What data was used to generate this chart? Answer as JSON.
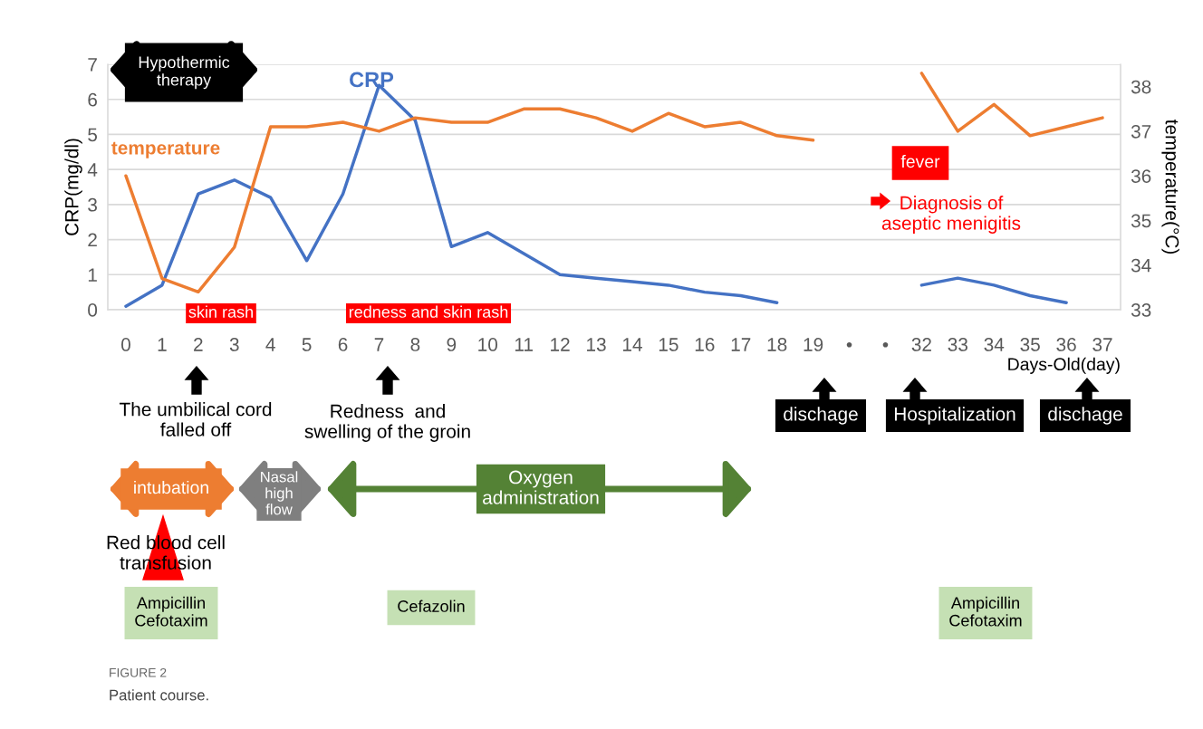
{
  "chart_data": {
    "type": "line",
    "xlabel": "Days-Old(day)",
    "ylabel": "CRP(mg/dl)",
    "y2label": "temperature(°C)",
    "categories": [
      "0",
      "1",
      "2",
      "3",
      "4",
      "5",
      "6",
      "7",
      "8",
      "9",
      "10",
      "11",
      "12",
      "13",
      "14",
      "15",
      "16",
      "17",
      "18",
      "19",
      "•",
      "•",
      "32",
      "33",
      "34",
      "35",
      "36",
      "37"
    ],
    "ylim": [
      0,
      7
    ],
    "yticks": [
      0,
      1,
      2,
      3,
      4,
      5,
      6,
      7
    ],
    "y2lim": [
      33,
      38.5
    ],
    "y2ticks": [
      33,
      34,
      35,
      36,
      37,
      38
    ],
    "grid": "y",
    "series": [
      {
        "name": "CRP",
        "color": "#4472c4",
        "values": [
          0.1,
          0.7,
          3.3,
          3.7,
          3.2,
          1.4,
          3.3,
          6.4,
          5.4,
          1.8,
          2.2,
          1.6,
          1.0,
          0.9,
          0.8,
          0.7,
          0.5,
          0.4,
          0.2,
          null,
          null,
          null,
          0.7,
          0.9,
          0.7,
          0.4,
          0.2,
          null
        ]
      },
      {
        "name": "temperature",
        "color": "#ed7d31",
        "axis": "y2",
        "values": [
          36.0,
          33.7,
          33.4,
          34.4,
          37.1,
          37.1,
          37.2,
          37.0,
          37.3,
          37.2,
          37.2,
          37.5,
          37.5,
          37.3,
          37.0,
          37.4,
          37.1,
          37.2,
          36.9,
          36.8,
          null,
          null,
          38.3,
          37.0,
          37.6,
          36.9,
          37.1,
          37.3
        ]
      }
    ],
    "annotations": [
      "Hypothermic\ntherapy",
      "skin rash",
      "redness and skin rash",
      "fever",
      "Diagnosis of\naseptic menigitis",
      "The umbilical cord\nfalled off",
      "Redness  and\nswelling of the groin",
      "dischage",
      "Hospitalization",
      "dischage",
      "intubation",
      "Nasal\nhigh\nflow",
      "Oxygen\nadministration",
      "Red blood cell\ntransfusion",
      "Ampicillin\nCefotaxim",
      "Cefazolin",
      "Ampicillin\nCefotaxim",
      "FIGURE 2",
      "Patient course."
    ]
  }
}
